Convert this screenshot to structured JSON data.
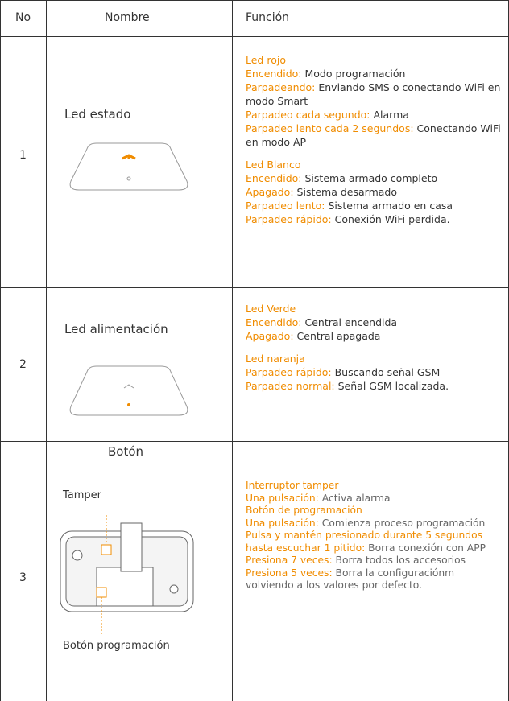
{
  "table": {
    "headers": [
      "No",
      "Nombre",
      "Función"
    ],
    "rows": [
      {
        "no": "1",
        "name": "Led estado",
        "groups": [
          {
            "title": "Led rojo",
            "items": [
              {
                "label": "Encendido:",
                "text": "Modo programación"
              },
              {
                "label": "Parpadeando:",
                "text": "Enviando SMS o conectando WiFi en modo Smart"
              },
              {
                "label": "Parpadeo cada segundo:",
                "text": "Alarma"
              },
              {
                "label": "Parpadeo lento cada 2 segundos:",
                "text": "Conectando WiFi en modo AP"
              }
            ]
          },
          {
            "title": "Led Blanco",
            "items": [
              {
                "label": "Encendido:",
                "text": "Sistema armado completo"
              },
              {
                "label": "Apagado:",
                "text": "Sistema desarmado"
              },
              {
                "label": "Parpadeo lento:",
                "text": "Sistema armado en casa"
              },
              {
                "label": "Parpadeo rápido:",
                "text": "Conexión WiFi perdida."
              }
            ]
          }
        ]
      },
      {
        "no": "2",
        "name": "Led alimentación",
        "groups": [
          {
            "title": "Led Verde",
            "items": [
              {
                "label": "Encendido:",
                "text": "Central encendida"
              },
              {
                "label": "Apagado:",
                "text": "Central apagada"
              }
            ]
          },
          {
            "title": "Led naranja",
            "items": [
              {
                "label": "Parpadeo rápido:",
                "text": "Buscando señal GSM"
              },
              {
                "label": "Parpadeo normal:",
                "text": "Señal GSM localizada."
              }
            ]
          }
        ]
      },
      {
        "no": "3",
        "name": "Botón",
        "callouts": [
          "Tamper",
          "Botón programación"
        ],
        "groups": [
          {
            "title": "Interruptor tamper",
            "items": [
              {
                "label": "Una pulsación:",
                "text": "Activa alarma"
              }
            ]
          },
          {
            "title": "Botón de programación",
            "items": [
              {
                "label": "Una pulsación:",
                "text": "Comienza proceso programación"
              },
              {
                "label": "Pulsa y mantén presionado durante 5 segundos hasta escuchar 1 pitido:",
                "text": "Borra conexión con APP"
              },
              {
                "label": "Presiona 7 veces:",
                "text": "Borra todos los accesorios"
              },
              {
                "label": "Presiona 5 veces:",
                "text": "Borra la configuraciónm volviendo a los valores por defecto."
              }
            ]
          }
        ]
      }
    ]
  }
}
